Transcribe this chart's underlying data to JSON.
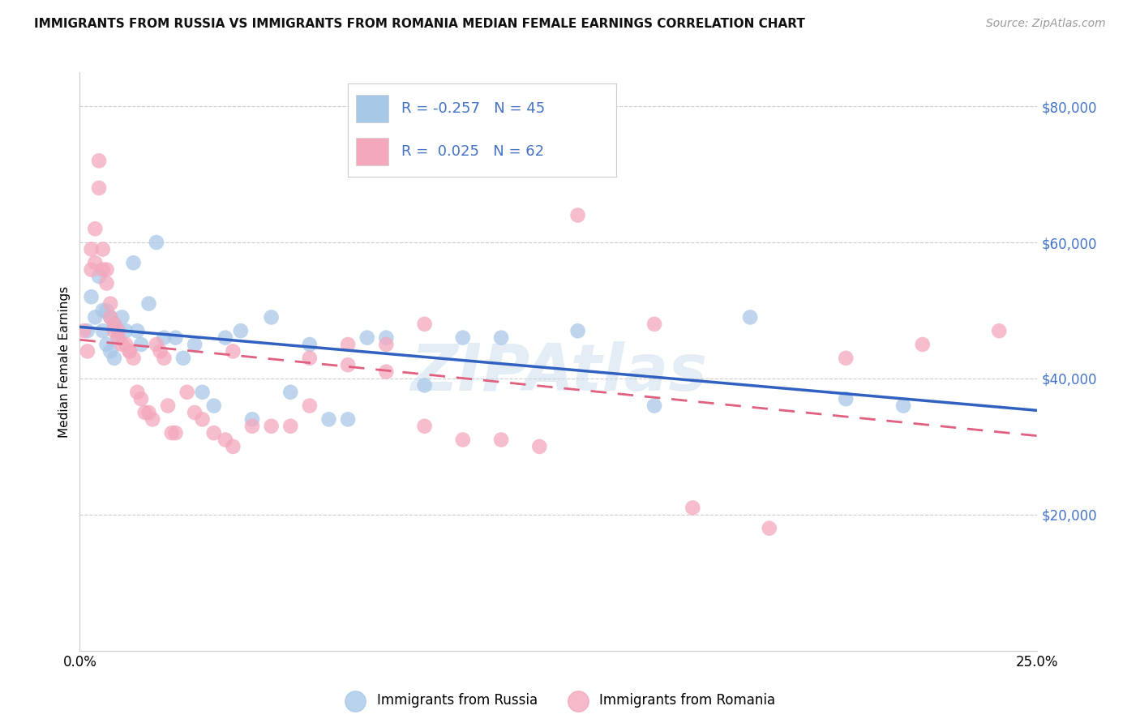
{
  "title": "IMMIGRANTS FROM RUSSIA VS IMMIGRANTS FROM ROMANIA MEDIAN FEMALE EARNINGS CORRELATION CHART",
  "source": "Source: ZipAtlas.com",
  "ylabel": "Median Female Earnings",
  "xlim": [
    0.0,
    0.25
  ],
  "ylim": [
    0,
    85000
  ],
  "yticks": [
    20000,
    40000,
    60000,
    80000
  ],
  "ytick_labels": [
    "$20,000",
    "$40,000",
    "$60,000",
    "$80,000"
  ],
  "xticks": [
    0.0,
    0.05,
    0.1,
    0.15,
    0.2,
    0.25
  ],
  "xtick_labels": [
    "0.0%",
    "",
    "",
    "",
    "",
    "25.0%"
  ],
  "russia_R": -0.257,
  "russia_N": 45,
  "romania_R": 0.025,
  "romania_N": 62,
  "russia_color": "#a8c8e8",
  "romania_color": "#f4a8bc",
  "russia_line_color": "#3060c0",
  "romania_line_color": "#e06080",
  "legend_border_color": "#cccccc",
  "grid_color": "#cccccc",
  "ytick_color": "#4472c4",
  "watermark": "ZIPAtlas",
  "russia_x": [
    0.002,
    0.003,
    0.004,
    0.005,
    0.006,
    0.006,
    0.007,
    0.007,
    0.008,
    0.008,
    0.009,
    0.009,
    0.01,
    0.01,
    0.011,
    0.012,
    0.014,
    0.015,
    0.016,
    0.018,
    0.02,
    0.022,
    0.025,
    0.027,
    0.03,
    0.032,
    0.035,
    0.038,
    0.042,
    0.045,
    0.05,
    0.055,
    0.06,
    0.065,
    0.07,
    0.075,
    0.08,
    0.09,
    0.1,
    0.11,
    0.13,
    0.15,
    0.175,
    0.2,
    0.215
  ],
  "russia_y": [
    47000,
    52000,
    49000,
    55000,
    47000,
    50000,
    45000,
    50000,
    44000,
    49000,
    43000,
    48000,
    46000,
    47000,
    49000,
    47000,
    57000,
    47000,
    45000,
    51000,
    60000,
    46000,
    46000,
    43000,
    45000,
    38000,
    36000,
    46000,
    47000,
    34000,
    49000,
    38000,
    45000,
    34000,
    34000,
    46000,
    46000,
    39000,
    46000,
    46000,
    47000,
    36000,
    49000,
    37000,
    36000
  ],
  "romania_x": [
    0.001,
    0.002,
    0.003,
    0.003,
    0.004,
    0.004,
    0.005,
    0.005,
    0.006,
    0.006,
    0.007,
    0.007,
    0.008,
    0.008,
    0.009,
    0.009,
    0.01,
    0.01,
    0.011,
    0.012,
    0.013,
    0.013,
    0.014,
    0.015,
    0.016,
    0.017,
    0.018,
    0.019,
    0.02,
    0.021,
    0.022,
    0.023,
    0.024,
    0.025,
    0.028,
    0.03,
    0.032,
    0.035,
    0.038,
    0.04,
    0.045,
    0.05,
    0.055,
    0.06,
    0.07,
    0.08,
    0.09,
    0.11,
    0.13,
    0.16,
    0.18,
    0.2,
    0.22,
    0.24,
    0.15,
    0.09,
    0.04,
    0.06,
    0.07,
    0.08,
    0.1,
    0.12
  ],
  "romania_y": [
    47000,
    44000,
    59000,
    56000,
    62000,
    57000,
    72000,
    68000,
    59000,
    56000,
    56000,
    54000,
    51000,
    49000,
    48000,
    47000,
    47000,
    46000,
    45000,
    45000,
    44000,
    44000,
    43000,
    38000,
    37000,
    35000,
    35000,
    34000,
    45000,
    44000,
    43000,
    36000,
    32000,
    32000,
    38000,
    35000,
    34000,
    32000,
    31000,
    30000,
    33000,
    33000,
    33000,
    36000,
    45000,
    45000,
    33000,
    31000,
    64000,
    21000,
    18000,
    43000,
    45000,
    47000,
    48000,
    48000,
    44000,
    43000,
    42000,
    41000,
    31000,
    30000
  ]
}
